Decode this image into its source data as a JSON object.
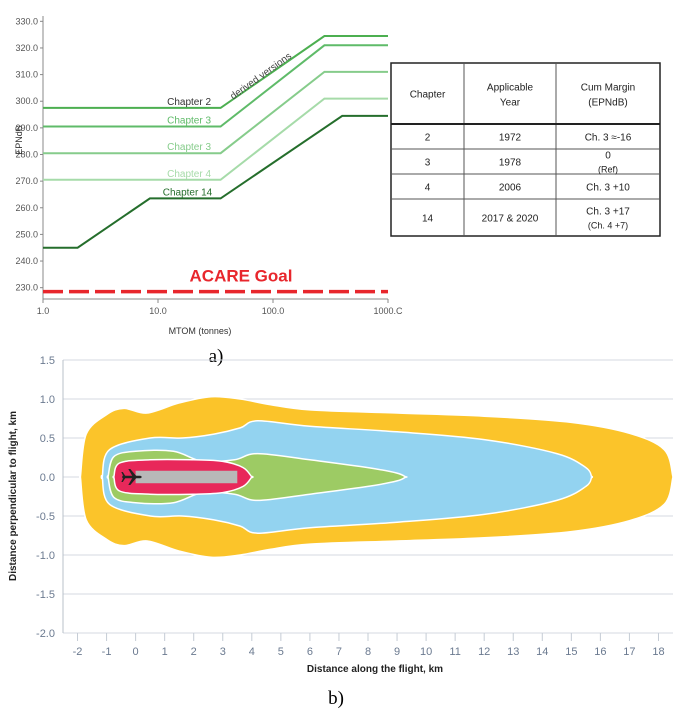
{
  "chart_data": [
    {
      "type": "line",
      "panel_label": "a)",
      "xlabel": "MTOM (tonnes)",
      "ylabel": "EPNdB",
      "x_scale": "log",
      "xlim": [
        1.0,
        1000.0
      ],
      "ylim": [
        228.0,
        332.0
      ],
      "x_ticks": [
        "1.0",
        "10.0",
        "100.0",
        "1000.C"
      ],
      "x_tick_values": [
        1,
        10,
        100,
        1000
      ],
      "y_ticks": [
        "330.0",
        "320.0",
        "310.0",
        "300.0",
        "290.0",
        "280.0",
        "270.0",
        "260.0",
        "250.0",
        "240.0",
        "230.0"
      ],
      "y_tick_values": [
        330,
        320,
        310,
        300,
        290,
        280,
        270,
        260,
        250,
        240,
        230
      ],
      "series": [
        {
          "name": "Chapter 2",
          "color": "#4caf50",
          "x": [
            1.0,
            35.0,
            280.0,
            1000.0
          ],
          "y": [
            297.5,
            297.5,
            324.5,
            324.5
          ]
        },
        {
          "name": "Chapter 3",
          "color": "#5fbb69",
          "x": [
            1.0,
            35.0,
            280.0,
            1000.0
          ],
          "y": [
            290.5,
            290.5,
            321.0,
            321.0
          ]
        },
        {
          "name": "Chapter 3",
          "color": "#86cc8b",
          "x": [
            1.0,
            35.0,
            280.0,
            1000.0
          ],
          "y": [
            280.5,
            280.5,
            311.0,
            311.0
          ]
        },
        {
          "name": "Chapter 4",
          "color": "#a6dba9",
          "x": [
            1.0,
            35.0,
            280.0,
            1000.0
          ],
          "y": [
            270.5,
            270.5,
            301.0,
            301.0
          ]
        },
        {
          "name": "Chapter 14",
          "color": "#256e2c",
          "x": [
            1.0,
            2.0,
            8.5,
            35.0,
            400.0,
            1000.0
          ],
          "y": [
            245.0,
            245.0,
            263.5,
            263.5,
            294.5,
            294.5
          ]
        }
      ],
      "goal": {
        "name": "ACARE Goal",
        "y": 228.5,
        "color": "#e8262c"
      },
      "annotations": [
        "derived versions"
      ],
      "table": {
        "headers": [
          "Chapter",
          "Applicable Year",
          "Cum Margin (EPNdB)"
        ],
        "rows": [
          [
            "2",
            "1972",
            "Ch. 3 ≈-16"
          ],
          [
            "3",
            "1978",
            "0 (Ref)"
          ],
          [
            "4",
            "2006",
            "Ch. 3 +10"
          ],
          [
            "14",
            "2017 & 2020",
            "Ch. 3 +17 (Ch. 4 +7)"
          ]
        ]
      }
    },
    {
      "type": "area",
      "panel_label": "b)",
      "xlabel": "Distance along the flight, km",
      "ylabel": "Distance perpendicular to flight, km",
      "xlim": [
        -2.5,
        18.5
      ],
      "ylim": [
        -2.0,
        1.5
      ],
      "x_ticks": [
        "-2",
        "-1",
        "0",
        "1",
        "2",
        "3",
        "4",
        "5",
        "6",
        "7",
        "8",
        "9",
        "10",
        "11",
        "12",
        "13",
        "14",
        "15",
        "16",
        "17",
        "18"
      ],
      "x_tick_values": [
        -2,
        -1,
        0,
        1,
        2,
        3,
        4,
        5,
        6,
        7,
        8,
        9,
        10,
        11,
        12,
        13,
        14,
        15,
        16,
        17,
        18
      ],
      "y_ticks": [
        "1.5",
        "1.0",
        "0.5",
        "0.0",
        "-0.5",
        "-1.0",
        "-1.5",
        "-2.0"
      ],
      "y_tick_values": [
        1.5,
        1.0,
        0.5,
        0.0,
        -0.5,
        -1.0,
        -1.5,
        -2.0
      ],
      "grid": true,
      "contours": [
        {
          "color": "#fbc42a",
          "x": [
            -1.9,
            -1.7,
            -1.0,
            -0.4,
            0.4,
            1.5,
            2.6,
            3.6,
            4.6,
            6.0,
            9.0,
            12.0,
            15.0,
            17.0,
            18.2,
            18.5
          ],
          "y": [
            0.0,
            0.55,
            0.8,
            0.88,
            0.82,
            0.95,
            1.03,
            1.0,
            0.93,
            0.86,
            0.82,
            0.78,
            0.7,
            0.56,
            0.35,
            0.0
          ]
        },
        {
          "color": "#93d3f0",
          "x": [
            -1.15,
            -0.9,
            0.5,
            1.6,
            2.7,
            3.6,
            4.2,
            6.0,
            9.0,
            12.0,
            14.5,
            15.5,
            15.7
          ],
          "y": [
            0.0,
            0.35,
            0.5,
            0.5,
            0.55,
            0.63,
            0.72,
            0.65,
            0.58,
            0.48,
            0.3,
            0.12,
            0.0
          ]
        },
        {
          "color": "#9dcb64",
          "x": [
            -0.95,
            -0.75,
            0.0,
            1.3,
            2.3,
            3.4,
            4.2,
            6.0,
            8.0,
            9.0,
            9.3
          ],
          "y": [
            0.0,
            0.26,
            0.33,
            0.33,
            0.2,
            0.22,
            0.3,
            0.22,
            0.12,
            0.05,
            0.0
          ]
        },
        {
          "color": "#e8285a",
          "x": [
            -0.75,
            -0.55,
            0.5,
            2.0,
            3.0,
            3.7,
            4.0
          ],
          "y": [
            0.0,
            0.18,
            0.22,
            0.22,
            0.2,
            0.12,
            0.0
          ]
        }
      ],
      "runway": {
        "x": [
          0.0,
          3.5
        ],
        "half_width": 0.08,
        "color": "#b8b8b8"
      }
    }
  ]
}
